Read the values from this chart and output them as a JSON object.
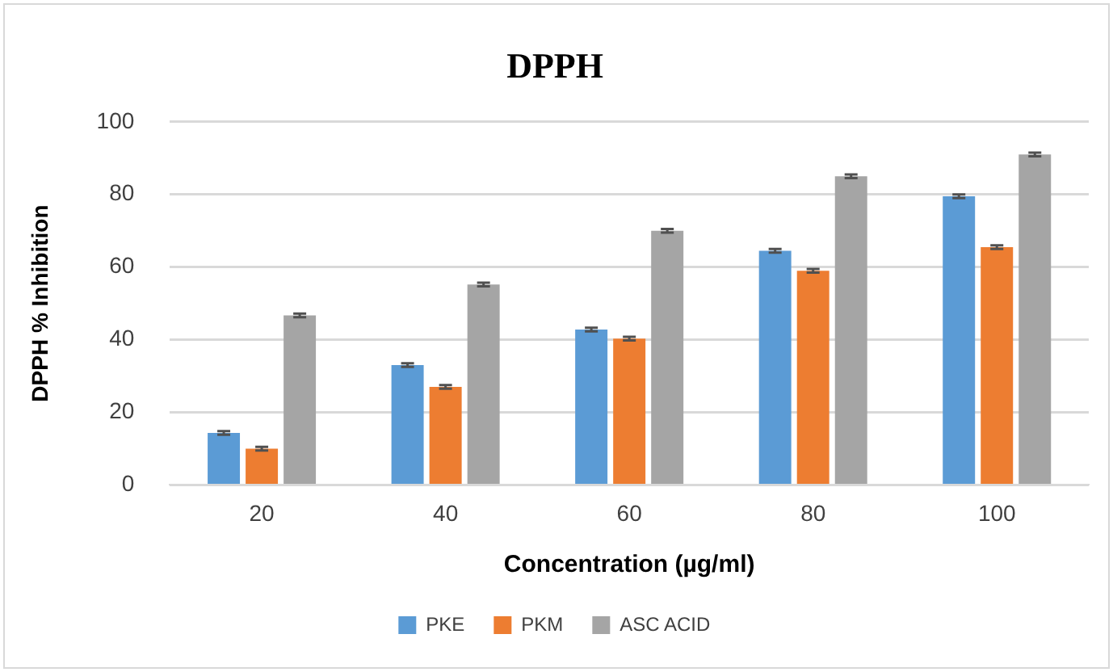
{
  "chart_data": {
    "type": "bar",
    "title": "DPPH",
    "xlabel": "Concentration (µg/ml)",
    "ylabel": "DPPH % Inhibition",
    "categories": [
      "20",
      "40",
      "60",
      "80",
      "100"
    ],
    "series": [
      {
        "name": "PKE",
        "color": "#5b9bd5",
        "values": [
          14.3,
          33,
          42.8,
          64.5,
          79.5
        ],
        "errors": [
          0.5,
          0.5,
          0.5,
          0.5,
          0.5
        ]
      },
      {
        "name": "PKM",
        "color": "#ed7d31",
        "values": [
          10,
          27,
          40.3,
          59,
          65.5
        ],
        "errors": [
          0.5,
          0.5,
          0.5,
          0.5,
          0.5
        ]
      },
      {
        "name": "ASC ACID",
        "color": "#a5a5a5",
        "values": [
          46.7,
          55.2,
          70,
          85,
          91
        ],
        "errors": [
          0.5,
          0.5,
          0.5,
          0.5,
          0.5
        ]
      }
    ],
    "ylim": [
      0,
      100
    ],
    "yticks": [
      0,
      20,
      40,
      60,
      80,
      100
    ],
    "grid": "y",
    "legend": "bottom"
  }
}
